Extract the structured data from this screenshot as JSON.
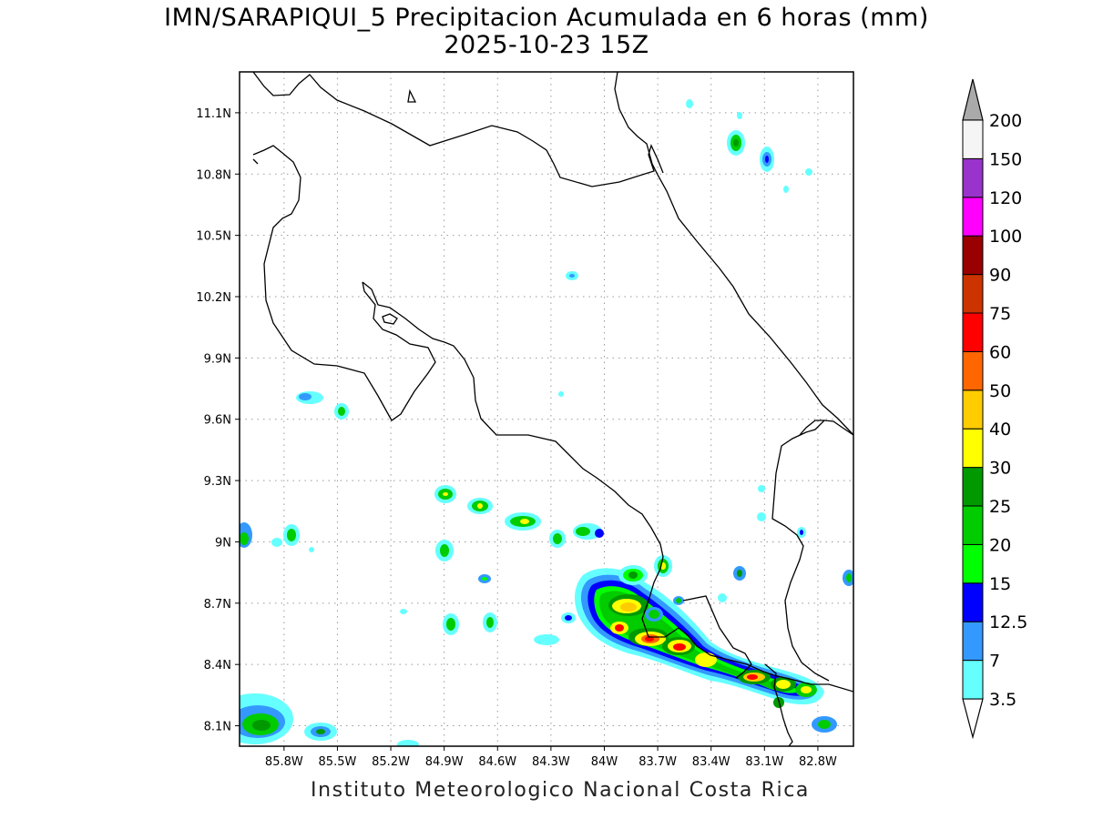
{
  "title_line1": "IMN/SARAPIQUI_5 Precipitacion Acumulada en 6 horas (mm)",
  "title_line2": "2025-10-23 15Z",
  "credit": "Instituto Meteorologico Nacional Costa Rica",
  "map": {
    "lon_range": [
      -86.05,
      -82.6
    ],
    "lat_range": [
      8.0,
      11.3
    ],
    "lat_ticks": [
      {
        "v": 11.1,
        "label": "11.1N"
      },
      {
        "v": 10.8,
        "label": "10.8N"
      },
      {
        "v": 10.5,
        "label": "10.5N"
      },
      {
        "v": 10.2,
        "label": "10.2N"
      },
      {
        "v": 9.9,
        "label": "9.9N"
      },
      {
        "v": 9.6,
        "label": "9.6N"
      },
      {
        "v": 9.3,
        "label": "9.3N"
      },
      {
        "v": 9.0,
        "label": "9N"
      },
      {
        "v": 8.7,
        "label": "8.7N"
      },
      {
        "v": 8.4,
        "label": "8.4N"
      },
      {
        "v": 8.1,
        "label": "8.1N"
      }
    ],
    "lon_ticks": [
      {
        "v": -85.8,
        "label": "85.8W"
      },
      {
        "v": -85.5,
        "label": "85.5W"
      },
      {
        "v": -85.2,
        "label": "85.2W"
      },
      {
        "v": -84.9,
        "label": "84.9W"
      },
      {
        "v": -84.6,
        "label": "84.6W"
      },
      {
        "v": -84.3,
        "label": "84.3W"
      },
      {
        "v": -84.0,
        "label": "84W"
      },
      {
        "v": -83.7,
        "label": "83.7W"
      },
      {
        "v": -83.4,
        "label": "83.4W"
      },
      {
        "v": -83.1,
        "label": "83.1W"
      },
      {
        "v": -82.8,
        "label": "82.8W"
      }
    ],
    "grid": true
  },
  "colorbar": {
    "labels": [
      "3.5",
      "7",
      "12.5",
      "15",
      "20",
      "25",
      "30",
      "40",
      "50",
      "60",
      "75",
      "90",
      "100",
      "120",
      "150",
      "200"
    ],
    "colors": [
      "#66ffff",
      "#3399ff",
      "#0000ff",
      "#00ff00",
      "#00cc00",
      "#009900",
      "#ffff00",
      "#ffcc00",
      "#ff6600",
      "#ff0000",
      "#cc3300",
      "#990000",
      "#ff00ff",
      "#9933cc",
      "#f5f5f5"
    ],
    "over_color": "#aaaaaa",
    "under_color": "#ffffff"
  }
}
